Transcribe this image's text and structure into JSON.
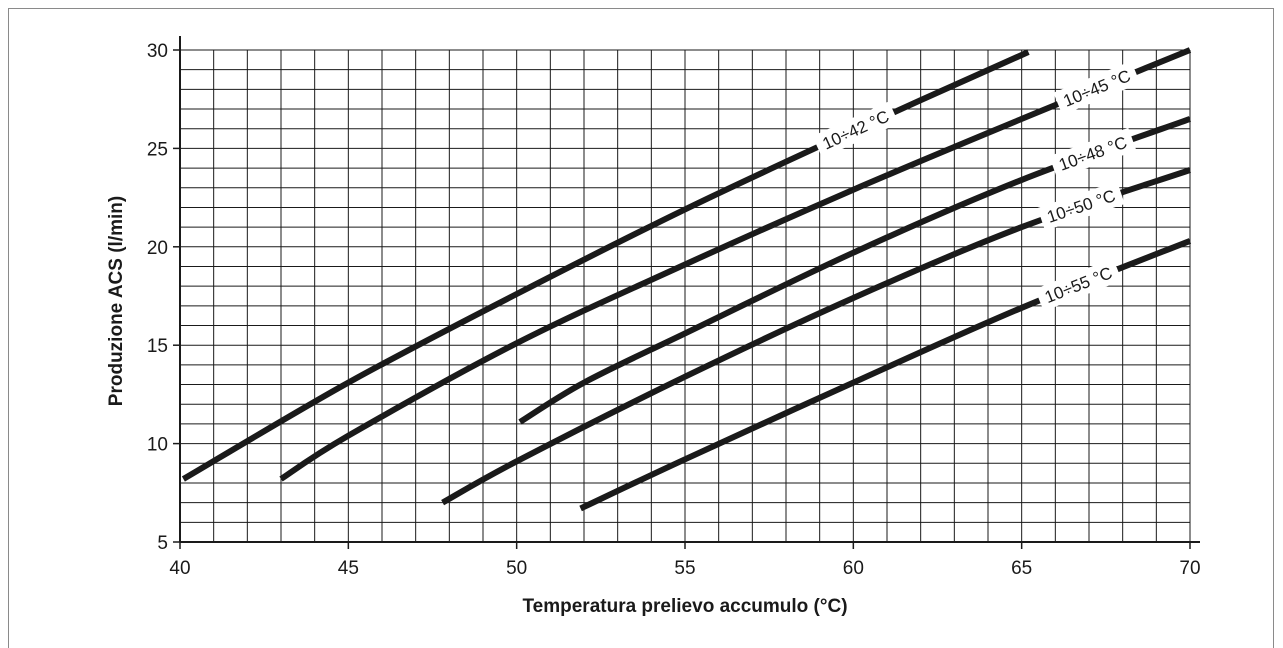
{
  "chart_data": {
    "type": "line",
    "xlabel": "Temperatura prelievo accumulo (°C)",
    "ylabel": "Produzione ACS (l/min)",
    "xlim": [
      40,
      70
    ],
    "ylim": [
      5,
      30
    ],
    "xticks": [
      "40",
      "45",
      "50",
      "55",
      "60",
      "65",
      "70"
    ],
    "yticks": [
      "5",
      "10",
      "15",
      "20",
      "25",
      "30"
    ],
    "grid": true,
    "series": [
      {
        "name": "10÷42 °C",
        "x": [
          40.1,
          45,
          50,
          55,
          60,
          65.2
        ],
        "y": [
          8.2,
          13.1,
          17.6,
          21.9,
          25.9,
          29.9
        ]
      },
      {
        "name": "10÷45 °C",
        "x": [
          43,
          45,
          50,
          55,
          60,
          65,
          70
        ],
        "y": [
          8.2,
          10.4,
          15.1,
          19.1,
          22.9,
          26.5,
          30.0
        ]
      },
      {
        "name": "10÷48 °C",
        "x": [
          50.1,
          52,
          55,
          60,
          65,
          70
        ],
        "y": [
          11.1,
          13.1,
          15.6,
          19.7,
          23.4,
          26.5
        ]
      },
      {
        "name": "10÷50 °C",
        "x": [
          47.8,
          50,
          55,
          60,
          65,
          70
        ],
        "y": [
          7.0,
          9.1,
          13.4,
          17.4,
          21.0,
          23.9
        ]
      },
      {
        "name": "10÷55 °C",
        "x": [
          51.9,
          55,
          60,
          65,
          70
        ],
        "y": [
          6.7,
          9.2,
          13.1,
          16.9,
          20.3
        ]
      }
    ]
  }
}
